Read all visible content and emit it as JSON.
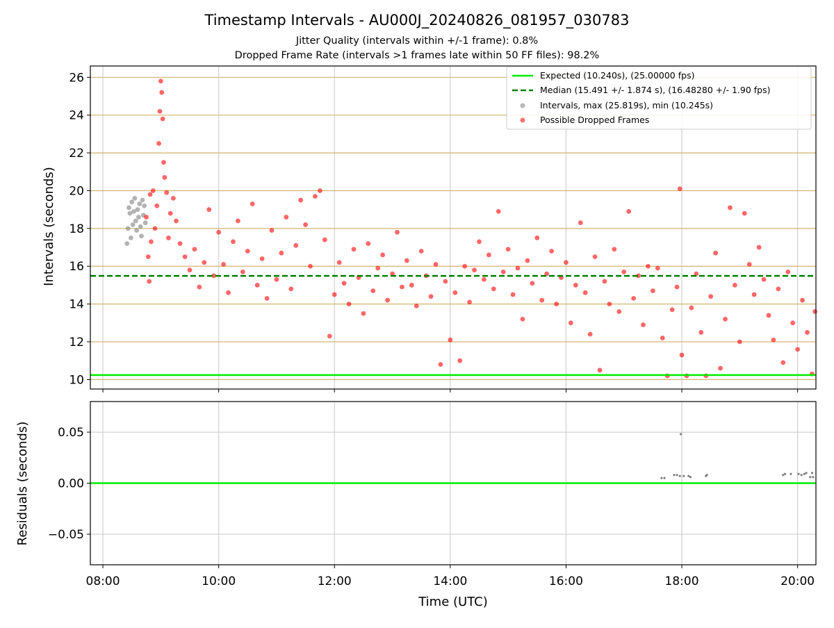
{
  "chart_data": [
    {
      "type": "scatter",
      "title": "Timestamp Intervals - AU000J_20240826_081957_030783",
      "subtitle_lines": [
        "Jitter Quality (intervals within +/-1 frame): 0.8%",
        "Dropped Frame Rate (intervals >1 frames late within 50 FF files): 98.2%"
      ],
      "xlabel": "",
      "ylabel": "Intervals (seconds)",
      "x_is_time_utc": true,
      "xlim": [
        "07:47",
        "20:19"
      ],
      "ylim": [
        9.5,
        26.6
      ],
      "y_ticks": [
        10,
        12,
        14,
        16,
        18,
        20,
        22,
        24,
        26
      ],
      "y_tick_labels": [
        "10",
        "12",
        "14",
        "16",
        "18",
        "20",
        "22",
        "24",
        "26"
      ],
      "grid": true,
      "legend_position": "top-right",
      "legend": [
        "Expected (10.240s), (25.00000 fps)",
        "Median (15.491 +/- 1.874 s), (16.48280 +/- 1.90 fps)",
        "Intervals, max (25.819s), min (10.245s)",
        "Possible Dropped Frames"
      ],
      "reference_lines": {
        "expected": 10.24,
        "median": 15.491,
        "horizontal_guides": [
          10,
          12,
          14,
          16,
          18,
          20,
          22,
          24,
          26
        ]
      },
      "series": [
        {
          "name": "Intervals, max (25.819s), min (10.245s)",
          "color": "#808080",
          "points": [
            [
              "08:25",
              17.2
            ],
            [
              "08:26",
              18.0
            ],
            [
              "08:27",
              19.1
            ],
            [
              "08:28",
              18.8
            ],
            [
              "08:29",
              17.5
            ],
            [
              "08:30",
              19.4
            ],
            [
              "08:31",
              18.2
            ],
            [
              "08:32",
              18.9
            ],
            [
              "08:33",
              19.6
            ],
            [
              "08:34",
              18.4
            ],
            [
              "08:35",
              17.9
            ],
            [
              "08:36",
              19.0
            ],
            [
              "08:37",
              18.6
            ],
            [
              "08:38",
              19.3
            ],
            [
              "08:39",
              18.1
            ],
            [
              "08:40",
              17.6
            ],
            [
              "08:41",
              19.5
            ],
            [
              "08:42",
              18.7
            ],
            [
              "08:43",
              19.2
            ],
            [
              "08:44",
              18.3
            ]
          ]
        },
        {
          "name": "Possible Dropped Frames",
          "color": "#ff0000",
          "points": [
            [
              "08:45",
              18.6
            ],
            [
              "08:47",
              16.5
            ],
            [
              "08:48",
              15.2
            ],
            [
              "08:49",
              19.8
            ],
            [
              "08:50",
              17.3
            ],
            [
              "08:52",
              20.0
            ],
            [
              "08:54",
              18.0
            ],
            [
              "08:56",
              19.2
            ],
            [
              "08:58",
              22.5
            ],
            [
              "08:59",
              24.2
            ],
            [
              "09:00",
              25.8
            ],
            [
              "09:01",
              25.2
            ],
            [
              "09:02",
              23.8
            ],
            [
              "09:03",
              21.5
            ],
            [
              "09:04",
              20.7
            ],
            [
              "09:06",
              19.9
            ],
            [
              "09:08",
              17.5
            ],
            [
              "09:10",
              18.8
            ],
            [
              "09:13",
              19.6
            ],
            [
              "09:16",
              18.4
            ],
            [
              "09:20",
              17.2
            ],
            [
              "09:25",
              16.5
            ],
            [
              "09:30",
              15.8
            ],
            [
              "09:35",
              16.9
            ],
            [
              "09:40",
              14.9
            ],
            [
              "09:45",
              16.2
            ],
            [
              "09:50",
              19.0
            ],
            [
              "09:55",
              15.5
            ],
            [
              "10:00",
              17.8
            ],
            [
              "10:05",
              16.1
            ],
            [
              "10:10",
              14.6
            ],
            [
              "10:15",
              17.3
            ],
            [
              "10:20",
              18.4
            ],
            [
              "10:25",
              15.7
            ],
            [
              "10:30",
              16.8
            ],
            [
              "10:35",
              19.3
            ],
            [
              "10:40",
              15.0
            ],
            [
              "10:45",
              16.4
            ],
            [
              "10:50",
              14.3
            ],
            [
              "10:55",
              17.9
            ],
            [
              "11:00",
              15.3
            ],
            [
              "11:05",
              16.7
            ],
            [
              "11:10",
              18.6
            ],
            [
              "11:15",
              14.8
            ],
            [
              "11:20",
              17.1
            ],
            [
              "11:25",
              19.5
            ],
            [
              "11:30",
              18.2
            ],
            [
              "11:35",
              16.0
            ],
            [
              "11:40",
              19.7
            ],
            [
              "11:45",
              20.0
            ],
            [
              "11:50",
              17.4
            ],
            [
              "11:55",
              12.3
            ],
            [
              "12:00",
              14.5
            ],
            [
              "12:05",
              16.2
            ],
            [
              "12:10",
              15.1
            ],
            [
              "12:15",
              14.0
            ],
            [
              "12:20",
              16.9
            ],
            [
              "12:25",
              15.4
            ],
            [
              "12:30",
              13.5
            ],
            [
              "12:35",
              17.2
            ],
            [
              "12:40",
              14.7
            ],
            [
              "12:45",
              15.9
            ],
            [
              "12:50",
              16.6
            ],
            [
              "12:55",
              14.2
            ],
            [
              "13:00",
              15.6
            ],
            [
              "13:05",
              17.8
            ],
            [
              "13:10",
              14.9
            ],
            [
              "13:15",
              16.3
            ],
            [
              "13:20",
              15.0
            ],
            [
              "13:25",
              13.9
            ],
            [
              "13:30",
              16.8
            ],
            [
              "13:35",
              15.5
            ],
            [
              "13:40",
              14.4
            ],
            [
              "13:45",
              16.1
            ],
            [
              "13:50",
              10.8
            ],
            [
              "13:55",
              15.2
            ],
            [
              "14:00",
              12.1
            ],
            [
              "14:05",
              14.6
            ],
            [
              "14:10",
              11.0
            ],
            [
              "14:15",
              16.0
            ],
            [
              "14:20",
              14.1
            ],
            [
              "14:25",
              15.8
            ],
            [
              "14:30",
              17.3
            ],
            [
              "14:35",
              15.3
            ],
            [
              "14:40",
              16.6
            ],
            [
              "14:45",
              14.8
            ],
            [
              "14:50",
              18.9
            ],
            [
              "14:55",
              15.7
            ],
            [
              "15:00",
              16.9
            ],
            [
              "15:05",
              14.5
            ],
            [
              "15:10",
              15.9
            ],
            [
              "15:15",
              13.2
            ],
            [
              "15:20",
              16.3
            ],
            [
              "15:25",
              15.1
            ],
            [
              "15:30",
              17.5
            ],
            [
              "15:35",
              14.2
            ],
            [
              "15:40",
              15.6
            ],
            [
              "15:45",
              16.8
            ],
            [
              "15:50",
              14.0
            ],
            [
              "15:55",
              15.4
            ],
            [
              "16:00",
              16.2
            ],
            [
              "16:05",
              13.0
            ],
            [
              "16:10",
              15.0
            ],
            [
              "16:15",
              18.3
            ],
            [
              "16:20",
              14.6
            ],
            [
              "16:25",
              12.4
            ],
            [
              "16:30",
              16.5
            ],
            [
              "16:35",
              10.5
            ],
            [
              "16:40",
              15.2
            ],
            [
              "16:45",
              14.0
            ],
            [
              "16:50",
              16.9
            ],
            [
              "16:55",
              13.6
            ],
            [
              "17:00",
              15.7
            ],
            [
              "17:05",
              18.9
            ],
            [
              "17:10",
              14.3
            ],
            [
              "17:15",
              15.5
            ],
            [
              "17:20",
              12.9
            ],
            [
              "17:25",
              16.0
            ],
            [
              "17:30",
              14.7
            ],
            [
              "17:35",
              15.9
            ],
            [
              "17:40",
              12.2
            ],
            [
              "17:45",
              10.2
            ],
            [
              "17:50",
              13.7
            ],
            [
              "17:55",
              14.9
            ],
            [
              "17:58",
              20.1
            ],
            [
              "18:00",
              11.3
            ],
            [
              "18:05",
              10.2
            ],
            [
              "18:10",
              13.8
            ],
            [
              "18:15",
              15.6
            ],
            [
              "18:20",
              12.5
            ],
            [
              "18:25",
              10.2
            ],
            [
              "18:30",
              14.4
            ],
            [
              "18:35",
              16.7
            ],
            [
              "18:40",
              10.6
            ],
            [
              "18:45",
              13.2
            ],
            [
              "18:50",
              19.1
            ],
            [
              "18:55",
              15.0
            ],
            [
              "19:00",
              12.0
            ],
            [
              "19:05",
              18.8
            ],
            [
              "19:10",
              16.1
            ],
            [
              "19:15",
              14.5
            ],
            [
              "19:20",
              17.0
            ],
            [
              "19:25",
              15.3
            ],
            [
              "19:30",
              13.4
            ],
            [
              "19:35",
              12.1
            ],
            [
              "19:40",
              14.8
            ],
            [
              "19:45",
              10.9
            ],
            [
              "19:50",
              15.7
            ],
            [
              "19:55",
              13.0
            ],
            [
              "20:00",
              11.6
            ],
            [
              "20:05",
              14.2
            ],
            [
              "20:10",
              12.5
            ],
            [
              "20:15",
              10.3
            ],
            [
              "20:18",
              13.6
            ]
          ]
        }
      ]
    },
    {
      "type": "scatter",
      "title": "",
      "xlabel": "Time (UTC)",
      "ylabel": "Residuals (seconds)",
      "x_is_time_utc": true,
      "xlim": [
        "07:47",
        "20:19"
      ],
      "ylim": [
        -0.08,
        0.08
      ],
      "x_ticks": [
        "08:00",
        "10:00",
        "12:00",
        "14:00",
        "16:00",
        "18:00",
        "20:00"
      ],
      "x_tick_labels": [
        "08:00",
        "10:00",
        "12:00",
        "14:00",
        "16:00",
        "18:00",
        "20:00"
      ],
      "y_ticks": [
        -0.05,
        0,
        0.05
      ],
      "y_tick_labels": [
        "−0.05",
        "0.00",
        "0.05"
      ],
      "grid": true,
      "zero_line": 0,
      "series": [
        {
          "color": "#808080",
          "points": [
            [
              "17:39",
              0.005
            ],
            [
              "17:42",
              0.005
            ],
            [
              "17:52",
              0.008
            ],
            [
              "17:55",
              0.008
            ],
            [
              "17:58",
              0.007
            ],
            [
              "17:59",
              0.048
            ],
            [
              "18:02",
              0.007
            ],
            [
              "18:07",
              0.007
            ],
            [
              "18:09",
              0.006
            ],
            [
              "18:25",
              0.007
            ],
            [
              "18:26",
              0.008
            ],
            [
              "19:45",
              0.008
            ],
            [
              "19:47",
              0.009
            ],
            [
              "19:53",
              0.009
            ],
            [
              "20:01",
              0.009
            ],
            [
              "20:04",
              0.008
            ],
            [
              "20:07",
              0.009
            ],
            [
              "20:09",
              0.01
            ],
            [
              "20:13",
              0.006
            ],
            [
              "20:15",
              0.01
            ],
            [
              "20:16",
              0.006
            ]
          ]
        }
      ]
    }
  ],
  "colors": {
    "expected": "#00ee00",
    "median": "#008000",
    "guide": "#d2b46e",
    "grid": "#c8c8c8",
    "interval_points": "#808080",
    "dropped_points": "#ff0000"
  }
}
